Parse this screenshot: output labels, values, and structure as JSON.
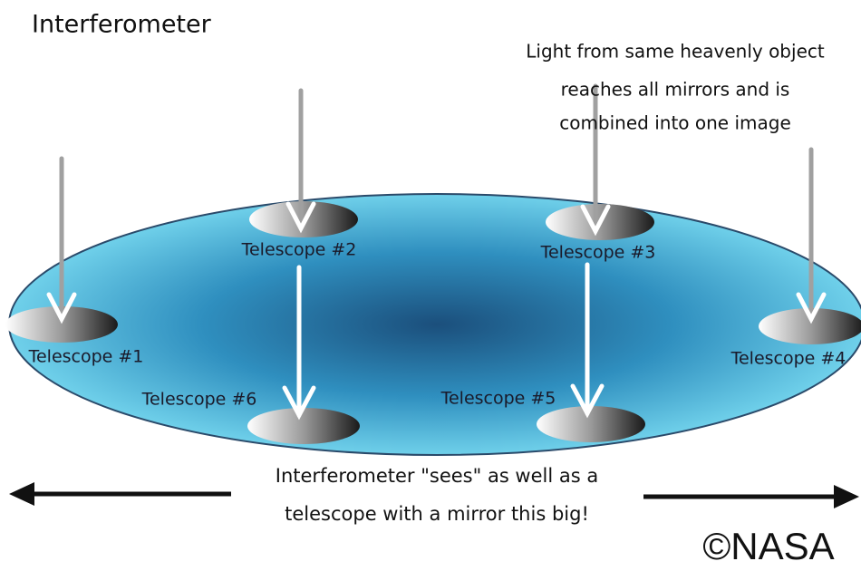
{
  "title": "Interferometer",
  "note": {
    "lines": [
      "Light from same heavenly object",
      "reaches all mirrors and is",
      "combined into one image"
    ]
  },
  "telescopes": [
    {
      "label": "Telescope #1"
    },
    {
      "label": "Telescope #2"
    },
    {
      "label": "Telescope #3"
    },
    {
      "label": "Telescope #4"
    },
    {
      "label": "Telescope #5"
    },
    {
      "label": "Telescope #6"
    }
  ],
  "caption": {
    "lines": [
      "Interferometer \"sees\" as well as a",
      "telescope with a mirror this big!"
    ]
  },
  "credit": "©NASA"
}
